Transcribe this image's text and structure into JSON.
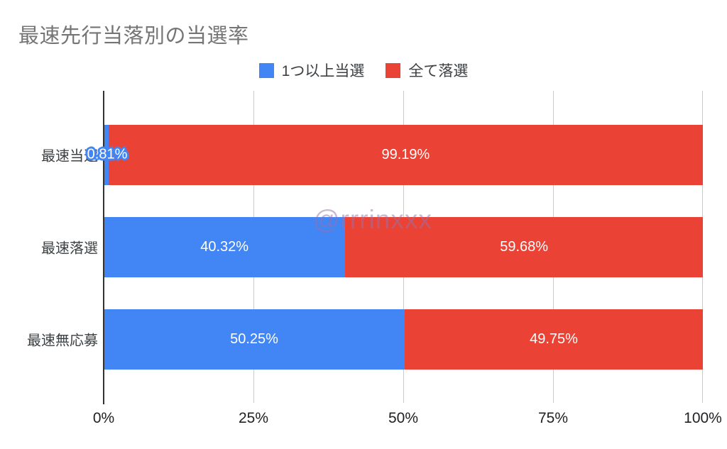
{
  "title": "最速先行当落別の当選率",
  "watermark": "@rrrinxxx",
  "legend": {
    "items": [
      {
        "label": "1つ以上当選",
        "color": "#4285f4"
      },
      {
        "label": "全て落選",
        "color": "#ea4335"
      }
    ]
  },
  "chart_data": {
    "type": "bar",
    "orientation": "horizontal",
    "stacked": true,
    "title": "最速先行当落別の当選率",
    "categories": [
      "最速当選",
      "最速落選",
      "最速無応募"
    ],
    "series": [
      {
        "name": "1つ以上当選",
        "color": "#4285f4",
        "values": [
          0.81,
          40.32,
          50.25
        ]
      },
      {
        "name": "全て落選",
        "color": "#ea4335",
        "values": [
          99.19,
          59.68,
          49.75
        ]
      }
    ],
    "value_labels": [
      [
        "0.81%",
        "99.19%"
      ],
      [
        "40.32%",
        "59.68%"
      ],
      [
        "50.25%",
        "49.75%"
      ]
    ],
    "x_ticks": [
      "0%",
      "25%",
      "50%",
      "75%",
      "100%"
    ],
    "xlim": [
      0,
      100
    ],
    "xlabel": "",
    "ylabel": "",
    "grid": true,
    "legend_position": "top",
    "gridline_color": "#cccccc",
    "axis_line_color": "#333333",
    "title_color": "#757575"
  }
}
